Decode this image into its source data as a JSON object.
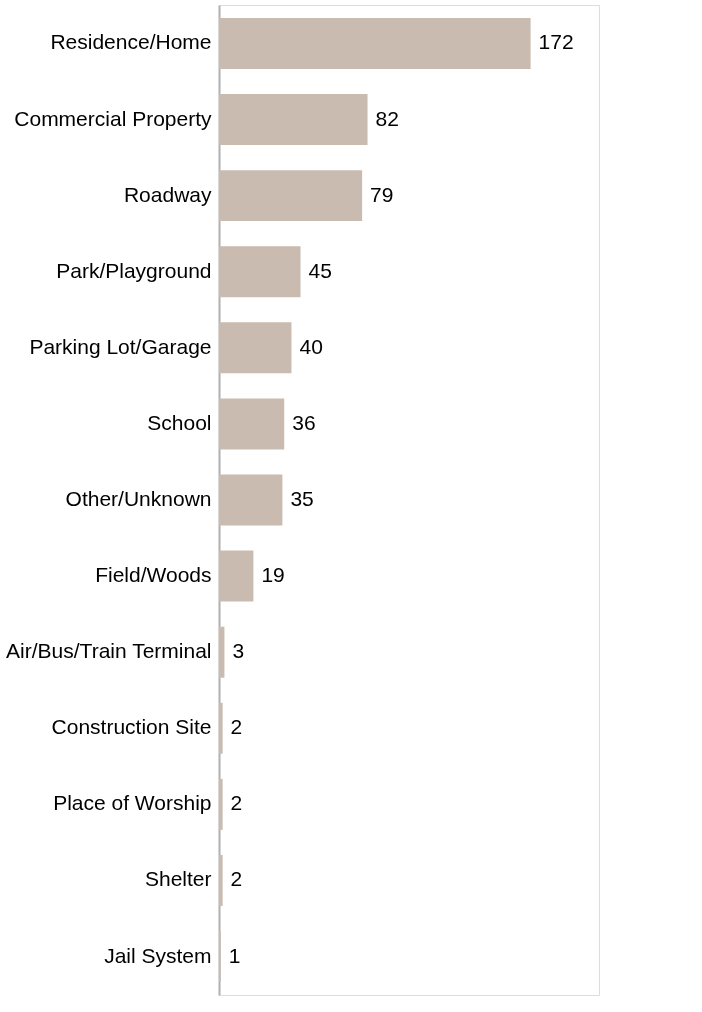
{
  "chart_data": {
    "type": "bar",
    "orientation": "horizontal",
    "categories": [
      "Residence/Home",
      "Commercial Property",
      "Roadway",
      "Park/Playground",
      "Parking Lot/Garage",
      "School",
      "Other/Unknown",
      "Field/Woods",
      "Air/Bus/Train Terminal",
      "Construction Site",
      "Place of Worship",
      "Shelter",
      "Jail System"
    ],
    "values": [
      172,
      82,
      79,
      45,
      40,
      36,
      35,
      19,
      3,
      2,
      2,
      2,
      1
    ],
    "color": "#c9bbb0",
    "data_labels": true,
    "tick_labels": "y",
    "grid": false
  }
}
